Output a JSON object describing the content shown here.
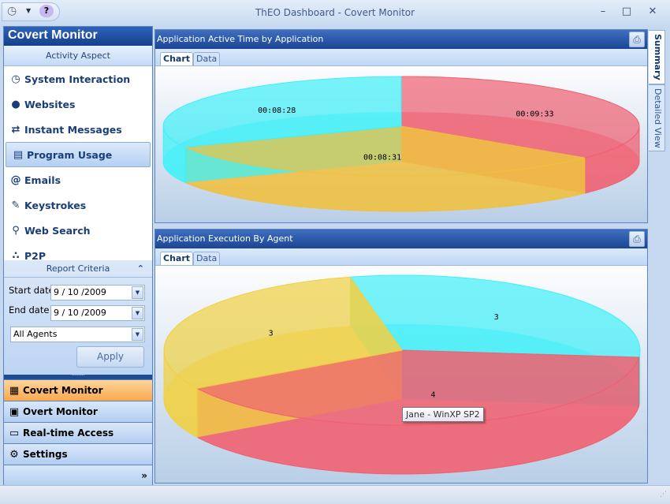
{
  "window": {
    "title": "ThEO Dashboard - Covert Monitor",
    "minimize": "–",
    "maximize": "□",
    "close": "✕"
  },
  "sidebar": {
    "title": "Covert Monitor",
    "section": "Activity Aspect",
    "items": [
      {
        "label": "System Interaction",
        "icon": "clock-icon",
        "glyph": "◷"
      },
      {
        "label": "Websites",
        "icon": "globe-icon",
        "glyph": "●"
      },
      {
        "label": "Instant Messages",
        "icon": "sync-arrows-icon",
        "glyph": "⇄"
      },
      {
        "label": "Program Usage",
        "icon": "program-icon",
        "glyph": "▤",
        "selected": true
      },
      {
        "label": "Emails",
        "icon": "at-icon",
        "glyph": "@"
      },
      {
        "label": "Keystrokes",
        "icon": "pencil-icon",
        "glyph": "✎"
      },
      {
        "label": "Web Search",
        "icon": "magnifier-icon",
        "glyph": "⚲"
      },
      {
        "label": "P2P",
        "icon": "network-icon",
        "glyph": "∴"
      }
    ],
    "criteria": {
      "title": "Report Criteria",
      "start_label": "Start date",
      "start_value": "9 / 10 /2009",
      "end_label": "End date",
      "end_value": "9 / 10 /2009",
      "agent_value": "All Agents",
      "apply": "Apply"
    },
    "nav": [
      {
        "label": "Covert Monitor",
        "icon": "covert-monitor-icon",
        "glyph": "▦",
        "active": true
      },
      {
        "label": "Overt Monitor",
        "icon": "overt-monitor-icon",
        "glyph": "▣"
      },
      {
        "label": "Real-time Access",
        "icon": "monitor-icon",
        "glyph": "▭"
      },
      {
        "label": "Settings",
        "icon": "gear-icon",
        "glyph": "⚙"
      }
    ]
  },
  "right_tabs": [
    "Summary",
    "Detailed View"
  ],
  "panels": [
    {
      "title": "Application Active Time by Application",
      "tabs": [
        "Chart",
        "Data"
      ]
    },
    {
      "title": "Application Execution By Agent",
      "tabs": [
        "Chart",
        "Data"
      ],
      "tooltip": "Jane - WinXP SP2"
    }
  ],
  "chart_data": [
    {
      "type": "pie",
      "labels": [
        "00:09:33",
        "00:08:31",
        "00:08:28"
      ],
      "values": [
        573,
        511,
        508
      ],
      "colors": [
        "#f06070",
        "#f0c040",
        "#40f0f8"
      ]
    },
    {
      "type": "pie",
      "labels": [
        "3",
        "4",
        "3"
      ],
      "values": [
        3,
        4,
        3
      ],
      "colors": [
        "#40f0f8",
        "#f06070",
        "#f0d040"
      ]
    }
  ]
}
